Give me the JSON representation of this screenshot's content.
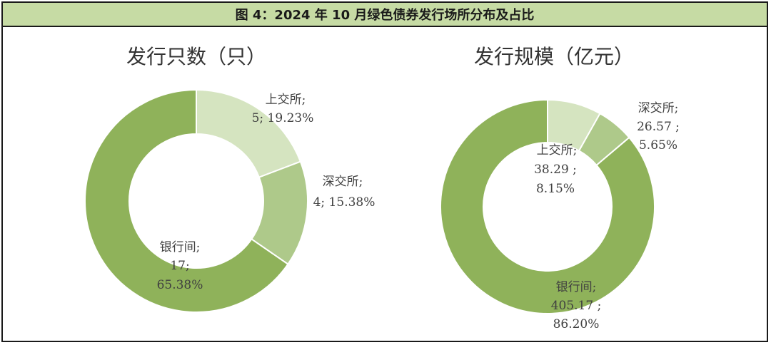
{
  "figure_title": "图 4：2024 年 10 月绿色债券发行场所分布及占比",
  "colors": {
    "header_bg": "#c6dba4",
    "slice_light": "#d5e4c0",
    "slice_mid": "#aec98a",
    "slice_dark": "#8fb25a"
  },
  "chart_data": [
    {
      "type": "pie",
      "donut": true,
      "title": "发行只数（只）",
      "slices": [
        {
          "name": "上交所",
          "value": 5,
          "percent": "19.23%",
          "value_label": "5",
          "color": "#d5e4c0"
        },
        {
          "name": "深交所",
          "value": 4,
          "percent": "15.38%",
          "value_label": "4",
          "color": "#aec98a"
        },
        {
          "name": "银行间",
          "value": 17,
          "percent": "65.38%",
          "value_label": "17",
          "color": "#8fb25a"
        }
      ],
      "labels": [
        {
          "line1": "上交所;",
          "line2": "5; 19.23%"
        },
        {
          "line1": "深交所;",
          "line2": "4; 15.38%"
        },
        {
          "line1": "银行间;",
          "line2": "17;",
          "line3": "65.38%"
        }
      ]
    },
    {
      "type": "pie",
      "donut": true,
      "title": "发行规模（亿元）",
      "slices": [
        {
          "name": "上交所",
          "value": 38.29,
          "percent": "8.15%",
          "color": "#d5e4c0"
        },
        {
          "name": "深交所",
          "value": 26.57,
          "percent": "5.65%",
          "color": "#aec98a"
        },
        {
          "name": "银行间",
          "value": 405.17,
          "percent": "86.20%",
          "color": "#8fb25a"
        }
      ],
      "labels": [
        {
          "line1": "上交所;",
          "line2": "38.29 ;",
          "line3": "8.15%"
        },
        {
          "line1": "深交所;",
          "line2": "26.57 ;",
          "line3": "5.65%"
        },
        {
          "line1": "银行间;",
          "line2": "405.17 ;",
          "line3": "86.20%"
        }
      ]
    }
  ]
}
